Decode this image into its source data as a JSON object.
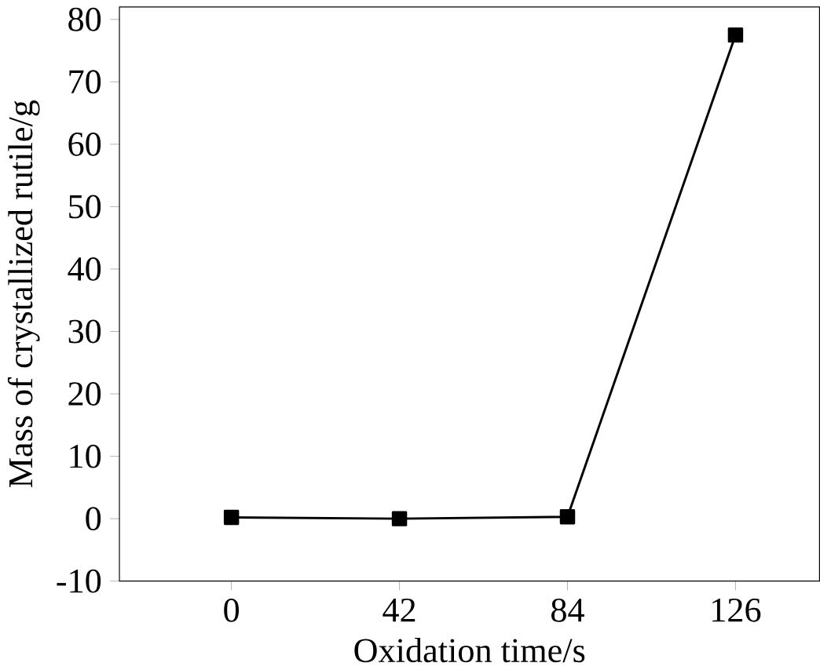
{
  "chart_data": {
    "type": "line",
    "xlabel": "Oxidation time/s",
    "ylabel": "Mass of crystallized rutile/g",
    "x": [
      0,
      42,
      84,
      126
    ],
    "series": [
      {
        "color": "#000000",
        "values": [
          0.2,
          0,
          0.3,
          77.5
        ]
      }
    ],
    "xlim": [
      -28,
      147
    ],
    "ylim": [
      -10,
      82
    ],
    "xticks": [
      0,
      42,
      84,
      126
    ],
    "yticks": [
      -10,
      0,
      10,
      20,
      30,
      40,
      50,
      60,
      70,
      80
    ],
    "marker": "square",
    "line_style": "solid"
  }
}
